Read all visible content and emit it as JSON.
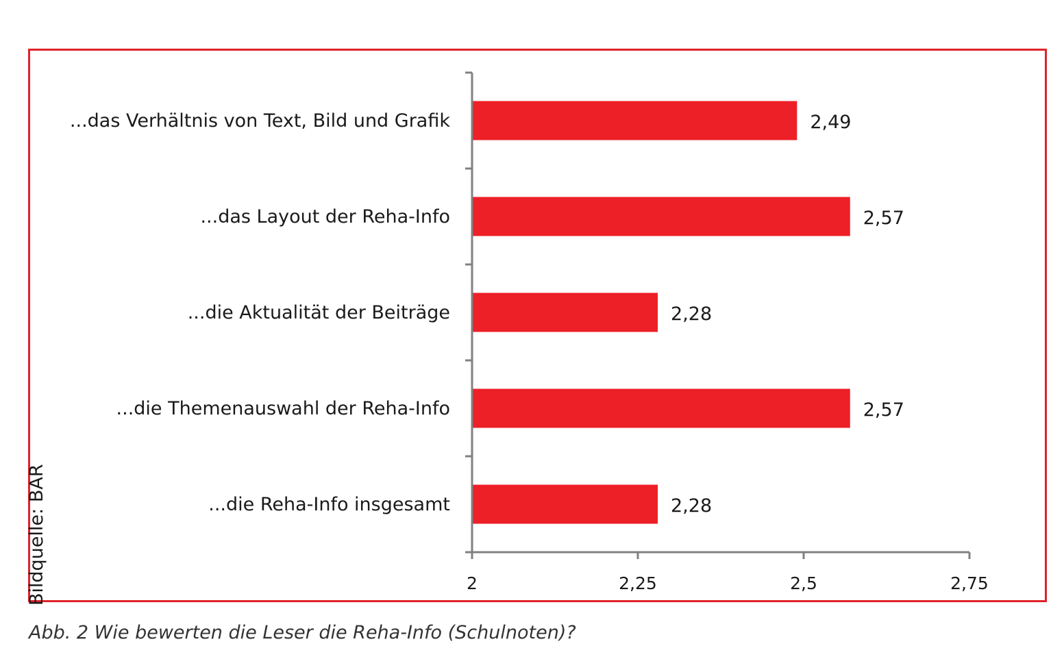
{
  "image_source": "Bildquelle: BAR",
  "caption": "Abb. 2 Wie bewerten die Leser die Reha-Info (Schulnoten)?",
  "colors": {
    "frame": "#e0222a",
    "bar": "#ed1f27",
    "axis": "#808080"
  },
  "chart_data": {
    "type": "bar",
    "orientation": "horizontal",
    "title": "",
    "xlabel": "",
    "ylabel": "",
    "categories": [
      "...das Verhältnis von Text, Bild und Grafik",
      "...das Layout der Reha-Info",
      "...die Aktualität der Beiträge",
      "...die Themenauswahl der Reha-Info",
      "...die Reha-Info insgesamt"
    ],
    "values": [
      2.49,
      2.57,
      2.28,
      2.57,
      2.28
    ],
    "value_labels": [
      "2,49",
      "2,57",
      "2,28",
      "2,57",
      "2,28"
    ],
    "xlim": [
      2,
      2.75
    ],
    "xticks": [
      2,
      2.25,
      2.5,
      2.75
    ],
    "xtick_labels": [
      "2",
      "2,25",
      "2,5",
      "2,75"
    ],
    "grid": false,
    "legend": "none"
  }
}
